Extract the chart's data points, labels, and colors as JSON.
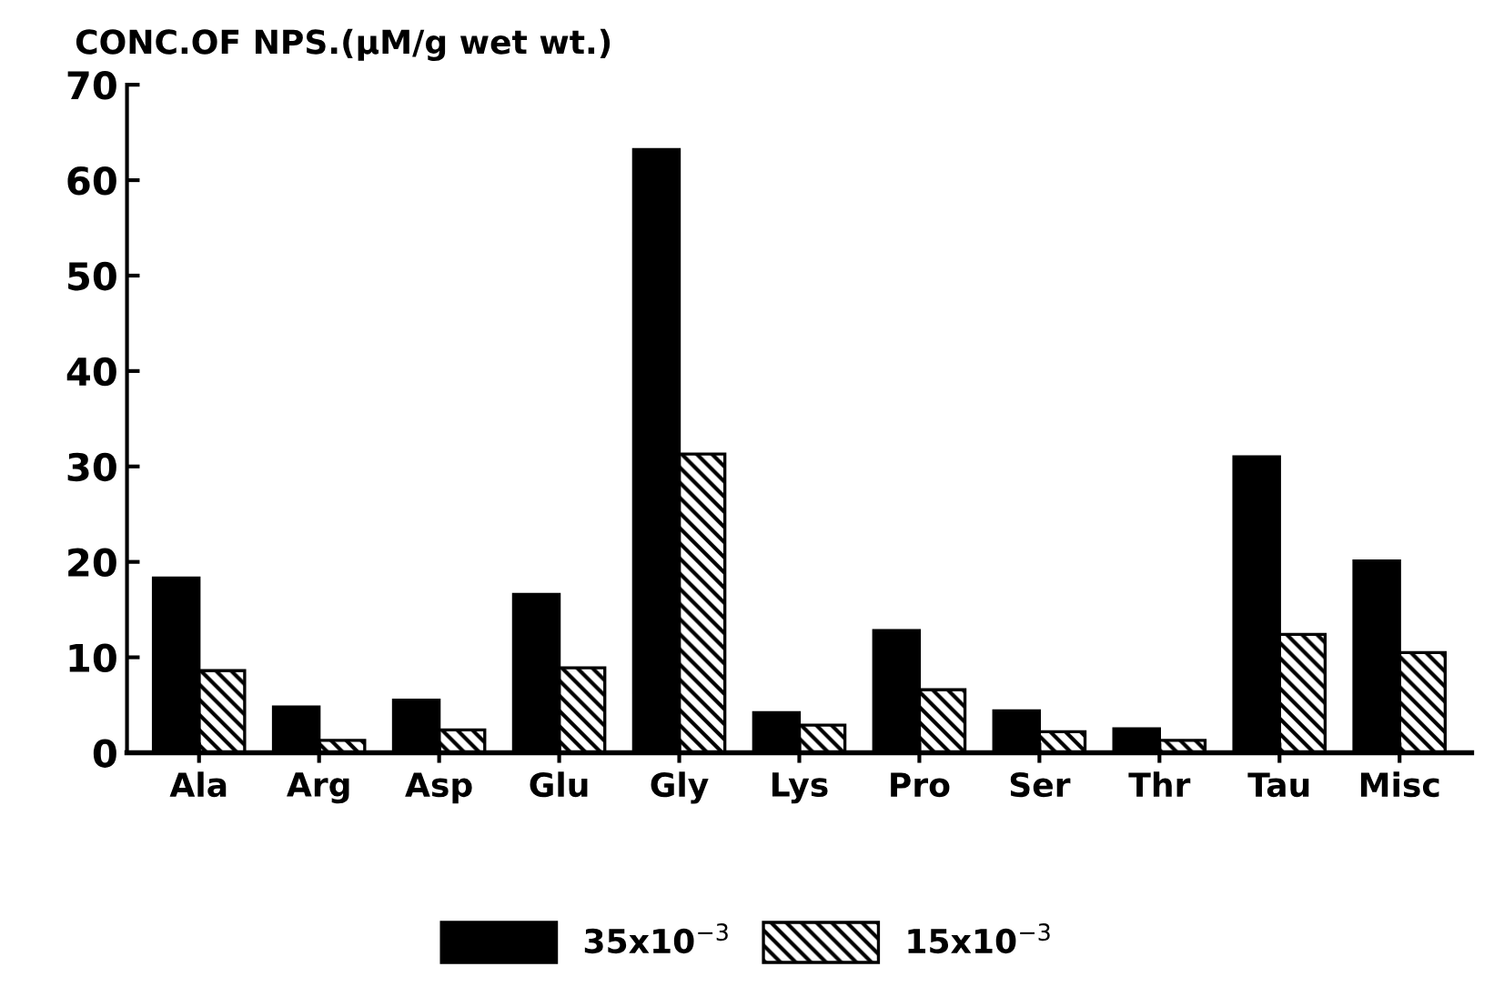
{
  "chart_data": {
    "type": "bar",
    "title": "CONC.OF NPS.(µM/g wet wt.)",
    "categories": [
      "Ala",
      "Arg",
      "Asp",
      "Glu",
      "Gly",
      "Lys",
      "Pro",
      "Ser",
      "Thr",
      "Tau",
      "Misc"
    ],
    "series": [
      {
        "name": "35x10$^{−3}$",
        "color": "#000000",
        "values": [
          18.3,
          4.8,
          5.5,
          16.6,
          63.2,
          4.2,
          12.8,
          4.4,
          2.5,
          31.0,
          20.1
        ]
      },
      {
        "name": "15x10$^{−3}$",
        "color": "#000000",
        "values": [
          8.6,
          1.3,
          2.4,
          8.9,
          31.3,
          2.9,
          6.6,
          2.2,
          1.3,
          12.4,
          10.5
        ]
      }
    ],
    "ylim": [
      0,
      70
    ],
    "yticks": [
      0,
      10,
      20,
      30,
      40,
      50,
      60,
      70
    ],
    "grid": false,
    "legend": "bottom"
  }
}
